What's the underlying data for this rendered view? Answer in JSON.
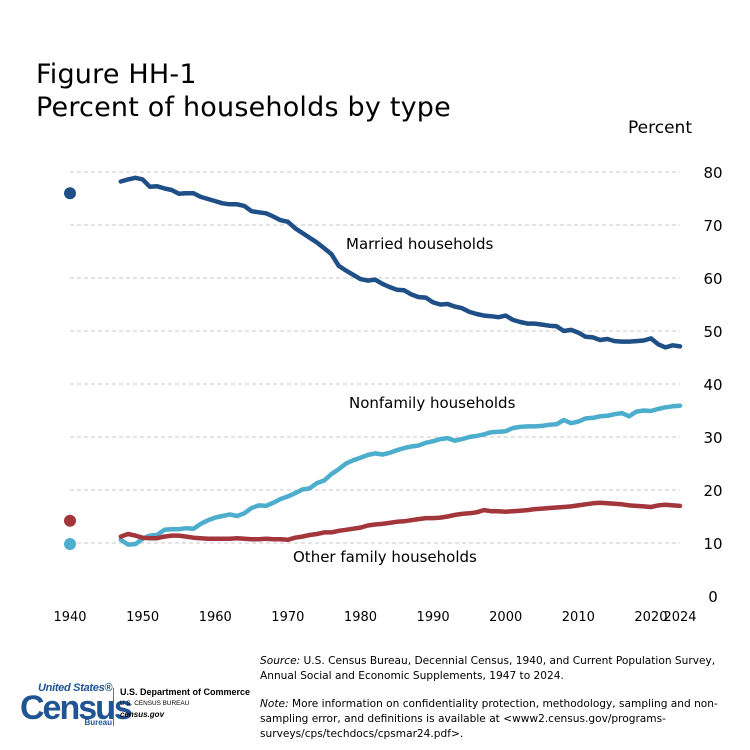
{
  "title": {
    "line1": "Figure HH-1",
    "line2": "Percent of households by type"
  },
  "chart_data": {
    "type": "line",
    "ylabel": "Percent",
    "ylim": [
      0,
      80
    ],
    "xlim": [
      1940,
      2024
    ],
    "y_ticks": [
      0,
      10,
      20,
      30,
      40,
      50,
      60,
      70,
      80
    ],
    "x_ticks": [
      1940,
      1950,
      1960,
      1970,
      1980,
      1990,
      2000,
      2010,
      2020,
      2024
    ],
    "grid": "horizontal dashed",
    "colors": {
      "married": "#1f4f87",
      "nonfamily": "#4cadcd",
      "other": "#a2363b",
      "grid": "#c8c8c8"
    },
    "annotations": {
      "married": "Married households",
      "nonfamily": "Nonfamily households",
      "other": "Other family households"
    },
    "census_1940": {
      "year": 1940,
      "married": 76,
      "nonfamily": 9.8,
      "other": 14.2
    },
    "series": [
      {
        "key": "married",
        "x": [
          1947,
          1948,
          1949,
          1950,
          1951,
          1952,
          1953,
          1954,
          1955,
          1956,
          1957,
          1958,
          1959,
          1960,
          1961,
          1962,
          1963,
          1964,
          1965,
          1966,
          1967,
          1968,
          1969,
          1970,
          1971,
          1972,
          1973,
          1974,
          1975,
          1976,
          1977,
          1978,
          1979,
          1980,
          1981,
          1982,
          1983,
          1984,
          1985,
          1986,
          1987,
          1988,
          1989,
          1990,
          1991,
          1992,
          1993,
          1994,
          1995,
          1996,
          1997,
          1998,
          1999,
          2000,
          2001,
          2002,
          2003,
          2004,
          2005,
          2006,
          2007,
          2008,
          2009,
          2010,
          2011,
          2012,
          2013,
          2014,
          2015,
          2016,
          2017,
          2018,
          2019,
          2020,
          2021,
          2022,
          2023,
          2024
        ],
        "values": [
          78.2,
          78.6,
          78.9,
          78.6,
          77.2,
          77.3,
          76.9,
          76.6,
          75.9,
          76.0,
          76.0,
          75.3,
          74.9,
          74.5,
          74.1,
          73.9,
          73.9,
          73.6,
          72.6,
          72.4,
          72.2,
          71.6,
          70.9,
          70.6,
          69.4,
          68.5,
          67.6,
          66.7,
          65.6,
          64.5,
          62.3,
          61.4,
          60.6,
          59.8,
          59.5,
          59.7,
          58.9,
          58.3,
          57.8,
          57.7,
          56.9,
          56.4,
          56.3,
          55.4,
          55.0,
          55.1,
          54.6,
          54.3,
          53.6,
          53.2,
          52.9,
          52.8,
          52.6,
          52.9,
          52.1,
          51.7,
          51.4,
          51.4,
          51.2,
          51.0,
          50.9,
          50.0,
          50.2,
          49.7,
          48.9,
          48.8,
          48.3,
          48.5,
          48.1,
          48.0,
          48.0,
          48.1,
          48.2,
          48.6,
          47.5,
          46.9,
          47.3,
          47.1
        ]
      },
      {
        "key": "nonfamily",
        "x": [
          1947,
          1948,
          1949,
          1950,
          1951,
          1952,
          1953,
          1954,
          1955,
          1956,
          1957,
          1958,
          1959,
          1960,
          1961,
          1962,
          1963,
          1964,
          1965,
          1966,
          1967,
          1968,
          1969,
          1970,
          1971,
          1972,
          1973,
          1974,
          1975,
          1976,
          1977,
          1978,
          1979,
          1980,
          1981,
          1982,
          1983,
          1984,
          1985,
          1986,
          1987,
          1988,
          1989,
          1990,
          1991,
          1992,
          1993,
          1994,
          1995,
          1996,
          1997,
          1998,
          1999,
          2000,
          2001,
          2002,
          2003,
          2004,
          2005,
          2006,
          2007,
          2008,
          2009,
          2010,
          2011,
          2012,
          2013,
          2014,
          2015,
          2016,
          2017,
          2018,
          2019,
          2020,
          2021,
          2022,
          2023,
          2024
        ],
        "values": [
          10.6,
          9.7,
          9.8,
          10.8,
          11.4,
          11.5,
          12.5,
          12.6,
          12.6,
          12.8,
          12.7,
          13.6,
          14.3,
          14.8,
          15.1,
          15.4,
          15.1,
          15.6,
          16.6,
          17.1,
          17.0,
          17.6,
          18.3,
          18.8,
          19.4,
          20.1,
          20.3,
          21.3,
          21.8,
          23.0,
          23.9,
          25.0,
          25.6,
          26.1,
          26.6,
          26.9,
          26.7,
          27.0,
          27.5,
          27.9,
          28.2,
          28.4,
          28.9,
          29.2,
          29.6,
          29.8,
          29.3,
          29.6,
          30.0,
          30.2,
          30.5,
          30.9,
          31.0,
          31.1,
          31.7,
          31.9,
          32.0,
          32.0,
          32.1,
          32.3,
          32.4,
          33.2,
          32.6,
          32.9,
          33.5,
          33.6,
          33.9,
          34.0,
          34.3,
          34.5,
          33.9,
          34.8,
          35.0,
          34.9,
          35.3,
          35.6,
          35.8,
          35.9
        ]
      },
      {
        "key": "other",
        "x": [
          1947,
          1948,
          1949,
          1950,
          1951,
          1952,
          1953,
          1954,
          1955,
          1956,
          1957,
          1958,
          1959,
          1960,
          1961,
          1962,
          1963,
          1964,
          1965,
          1966,
          1967,
          1968,
          1969,
          1970,
          1971,
          1972,
          1973,
          1974,
          1975,
          1976,
          1977,
          1978,
          1979,
          1980,
          1981,
          1982,
          1983,
          1984,
          1985,
          1986,
          1987,
          1988,
          1989,
          1990,
          1991,
          1992,
          1993,
          1994,
          1995,
          1996,
          1997,
          1998,
          1999,
          2000,
          2001,
          2002,
          2003,
          2004,
          2005,
          2006,
          2007,
          2008,
          2009,
          2010,
          2011,
          2012,
          2013,
          2014,
          2015,
          2016,
          2017,
          2018,
          2019,
          2020,
          2021,
          2022,
          2023,
          2024
        ],
        "values": [
          11.2,
          11.7,
          11.4,
          11.0,
          10.9,
          10.9,
          11.2,
          11.4,
          11.4,
          11.2,
          11.0,
          10.9,
          10.8,
          10.8,
          10.8,
          10.8,
          10.9,
          10.8,
          10.7,
          10.7,
          10.8,
          10.7,
          10.7,
          10.6,
          11.0,
          11.2,
          11.5,
          11.7,
          12.0,
          12.0,
          12.3,
          12.5,
          12.7,
          12.9,
          13.3,
          13.5,
          13.6,
          13.8,
          14.0,
          14.1,
          14.3,
          14.5,
          14.7,
          14.7,
          14.8,
          15.0,
          15.3,
          15.5,
          15.6,
          15.8,
          16.2,
          16.0,
          16.0,
          15.9,
          16.0,
          16.1,
          16.2,
          16.4,
          16.5,
          16.6,
          16.7,
          16.8,
          16.9,
          17.1,
          17.3,
          17.5,
          17.6,
          17.5,
          17.4,
          17.3,
          17.1,
          17.0,
          16.9,
          16.8,
          17.1,
          17.2,
          17.1,
          17.0
        ]
      }
    ]
  },
  "footer": {
    "source_label": "Source:",
    "source_text": " U.S. Census Bureau, Decennial Census, 1940, and Current Population Survey, Annual Social and Economic Supplements, 1947 to 2024.",
    "note_label": "Note:",
    "note_text": " More information on confidentiality protection, methodology, sampling and non-sampling error, and definitions is available at <www2.census.gov/programs-surveys/cps/techdocs/cpsmar24.pdf>."
  },
  "logo": {
    "top": "United States®",
    "main": "Census",
    "bottom": "Bureau"
  },
  "department": {
    "line1": "U.S. Department of Commerce",
    "line2": "U.S. CENSUS BUREAU",
    "line3": "census.gov"
  }
}
